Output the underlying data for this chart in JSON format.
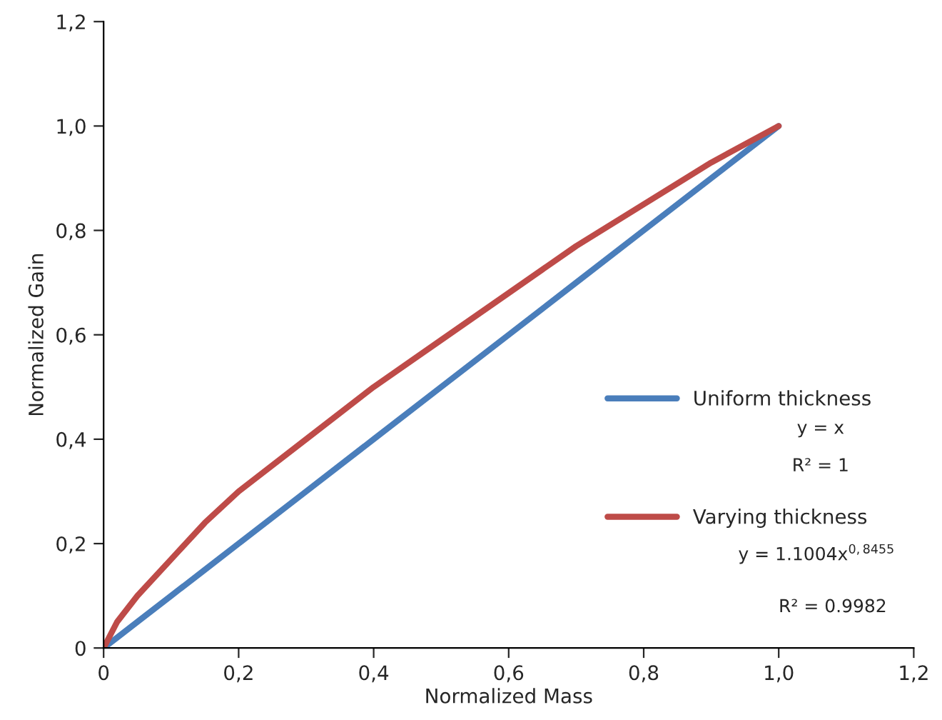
{
  "chart_data": {
    "type": "line",
    "xlabel": "Normalized Mass",
    "ylabel": "Normalized Gain",
    "x": [
      0,
      0.02,
      0.05,
      0.1,
      0.15,
      0.2,
      0.3,
      0.4,
      0.5,
      0.6,
      0.7,
      0.8,
      0.9,
      1.0
    ],
    "series": [
      {
        "name": "Uniform thickness",
        "color": "#4a7ebb",
        "values": [
          0,
          0.02,
          0.05,
          0.1,
          0.15,
          0.2,
          0.3,
          0.4,
          0.5,
          0.6,
          0.7,
          0.8,
          0.9,
          1.0
        ]
      },
      {
        "name": "Varying thickness",
        "color": "#be4b48",
        "values": [
          0,
          0.05,
          0.1,
          0.17,
          0.24,
          0.3,
          0.4,
          0.5,
          0.59,
          0.68,
          0.77,
          0.85,
          0.93,
          1.0
        ]
      }
    ],
    "annotations": [
      "y = x",
      "R² = 1",
      "y = 1.1004x$^{0,8455}$",
      "R² = 0.9982"
    ],
    "xlim": [
      0,
      1.2
    ],
    "ylim": [
      0,
      1.2
    ],
    "xticks": [
      0,
      {
        "value": 0.2,
        "label": "0,2"
      },
      {
        "value": 0.4,
        "label": "0,4"
      },
      {
        "value": 0.6,
        "label": "0,6"
      },
      {
        "value": 0.8,
        "label": "0,8"
      },
      {
        "value": 1.0,
        "label": "1,0"
      },
      {
        "value": 1.2,
        "label": "1,2"
      }
    ],
    "yticks": [
      0,
      {
        "value": 0.2,
        "label": "0,2"
      },
      {
        "value": 0.4,
        "label": "0,4"
      },
      {
        "value": 0.6,
        "label": "0,6"
      },
      {
        "value": 0.8,
        "label": "0,8"
      },
      {
        "value": 1.0,
        "label": "1,0"
      },
      {
        "value": 1.2,
        "label": "1,2"
      }
    ],
    "grid": false,
    "legend": "right",
    "marker": "none",
    "line_style": "solid"
  }
}
